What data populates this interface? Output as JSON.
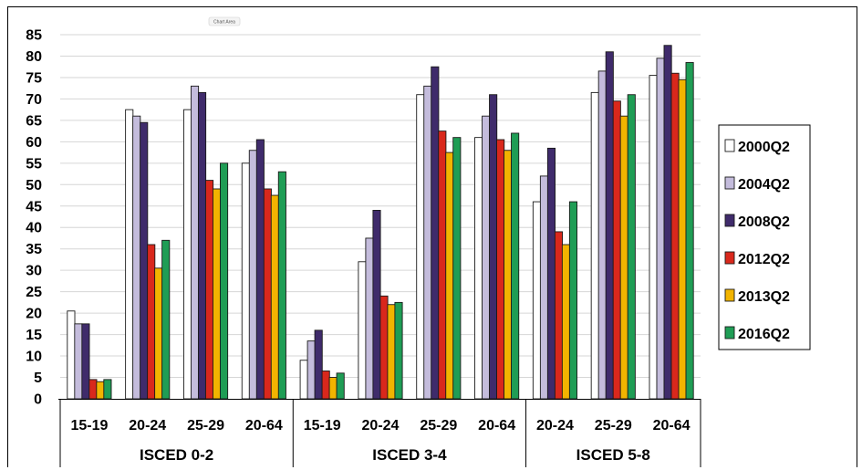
{
  "chart_data": {
    "type": "bar",
    "categories": [
      "15-19",
      "20-24",
      "25-29",
      "20-64",
      "15-19",
      "20-24",
      "25-29",
      "20-64",
      "20-24",
      "25-29",
      "20-64"
    ],
    "groups": [
      {
        "label": "ISCED 0-2",
        "count": 4
      },
      {
        "label": "ISCED 3-4",
        "count": 4
      },
      {
        "label": "ISCED 5-8",
        "count": 3
      }
    ],
    "series": [
      {
        "name": "2000Q2",
        "color": "#ffffff",
        "values": [
          20.5,
          67.5,
          67.5,
          55,
          9,
          32,
          71,
          61,
          46,
          71.5,
          75.5
        ]
      },
      {
        "name": "2004Q2",
        "color": "#c4bcdc",
        "values": [
          17.5,
          66,
          73,
          58,
          13.5,
          37.5,
          73,
          66,
          52,
          76.5,
          79.5
        ]
      },
      {
        "name": "2008Q2",
        "color": "#3f2b6b",
        "values": [
          17.5,
          64.5,
          71.5,
          60.5,
          16,
          44,
          77.5,
          71,
          58.5,
          81,
          82.5
        ]
      },
      {
        "name": "2012Q2",
        "color": "#d9281c",
        "values": [
          4.5,
          36,
          51,
          49,
          6.5,
          24,
          62.5,
          60.5,
          39,
          69.5,
          76
        ]
      },
      {
        "name": "2013Q2",
        "color": "#f2b400",
        "values": [
          4,
          30.5,
          49,
          47.5,
          5,
          22,
          57.5,
          58,
          36,
          66,
          74.5
        ]
      },
      {
        "name": "2016Q2",
        "color": "#1f9d55",
        "values": [
          4.5,
          37,
          55,
          53,
          6,
          22.5,
          61,
          62,
          46,
          71,
          78.5
        ]
      }
    ],
    "yticks": [
      "0",
      "5",
      "10",
      "15",
      "20",
      "25",
      "30",
      "35",
      "40",
      "45",
      "50",
      "55",
      "60",
      "65",
      "70",
      "75",
      "80",
      "85"
    ],
    "ylim": [
      0,
      85
    ],
    "grid": true,
    "legend_position": "right",
    "title": "",
    "xlabel": "",
    "ylabel": ""
  },
  "overlay_label": "Chart Area"
}
